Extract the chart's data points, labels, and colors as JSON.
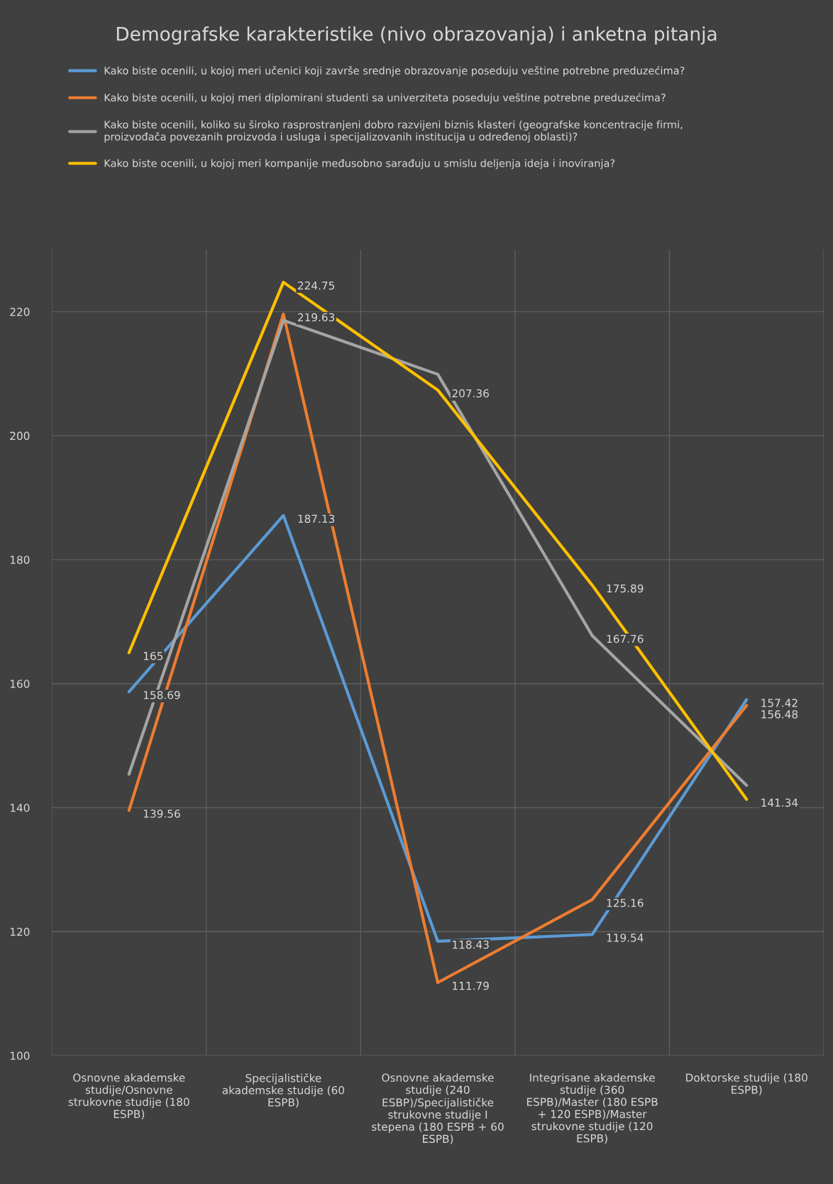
{
  "chart_data": {
    "type": "line",
    "title": "Demografske karakteristike (nivo obrazovanja) i anketna pitanja",
    "categories": [
      "Osnovne akademske\nstudije/Osnovne\nstrukovne studije (180\nESPB)",
      "Specijalističke\nakademske studije (60\nESPB)",
      "Osnovne akademske\nstudije (240\nESBP)/Specijalističke\nstrukovne studije I\nstepena (180 ESPB + 60\nESPB)",
      "Integrisane akademske\nstudije (360\nESPB)/Master (180 ESPB\n+ 120 ESPB)/Master\nstrukovne studije (120\nESPB)",
      "Doktorske studije (180\nESPB)"
    ],
    "series": [
      {
        "name": "Kako biste ocenili, u kojoj meri učenici koji završe srednje obrazovanje poseduju veštine potrebne preduzećima?",
        "color": "#5b9bd5",
        "values": [
          158.69,
          187.13,
          118.43,
          119.54,
          157.42
        ],
        "value_labels": [
          "158.69",
          "187.13",
          "118.43",
          "119.54",
          "157.42"
        ]
      },
      {
        "name": "Kako biste ocenili, u kojoj meri diplomirani studenti sa univerziteta poseduju veštine potrebne preduzećima?",
        "color": "#ed7d31",
        "values": [
          139.56,
          219.63,
          111.79,
          125.16,
          156.48
        ],
        "value_labels": [
          "139.56",
          "219.63",
          "111.79",
          "125.16",
          "156.48"
        ]
      },
      {
        "name": "Kako biste ocenili, koliko su široko rasprostranjeni dobro razvijeni biznis klasteri (geografske koncentracije firmi,\nproizvođača povezanih proizvoda i usluga i specijalizovanih institucija u određenoj oblasti)?",
        "color": "#a5a5a5",
        "values": [
          145.4,
          218.6,
          209.9,
          167.76,
          143.6
        ],
        "value_labels": [
          null,
          null,
          null,
          "167.76",
          null
        ]
      },
      {
        "name": "Kako biste ocenili, u kojoj meri kompanije međusobno sarađuju u smislu deljenja ideja i inoviranja?",
        "color": "#ffc000",
        "values": [
          165,
          224.75,
          207.36,
          175.89,
          141.34
        ],
        "value_labels": [
          "165",
          "224.75",
          "207.36",
          "175.89",
          "141.34"
        ]
      }
    ],
    "ylim": [
      100,
      230
    ],
    "yticks": [
      100,
      120,
      140,
      160,
      180,
      200,
      220
    ],
    "grid": true,
    "legend": "top",
    "marker": "none",
    "line_style": "solid"
  }
}
